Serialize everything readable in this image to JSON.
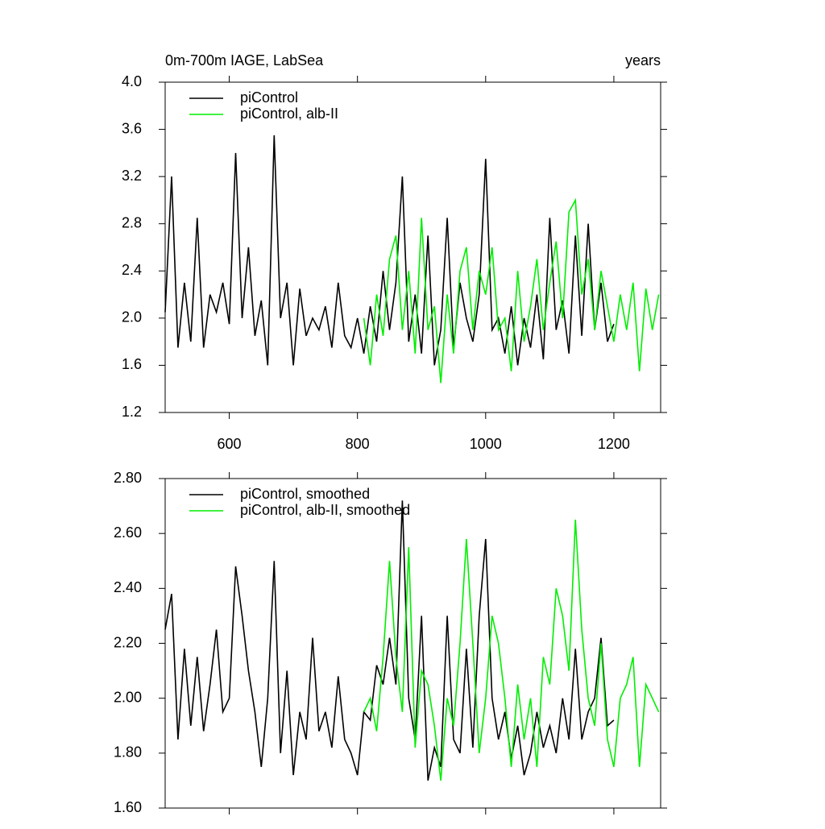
{
  "chart_data": [
    {
      "type": "line",
      "title": "0m-700m IAGE, LabSea",
      "right_title": "years",
      "x": [
        500,
        510,
        520,
        530,
        540,
        550,
        560,
        570,
        580,
        590,
        600,
        610,
        620,
        630,
        640,
        650,
        660,
        670,
        680,
        690,
        700,
        710,
        720,
        730,
        740,
        750,
        760,
        770,
        780,
        790,
        800,
        810,
        820,
        830,
        840,
        850,
        860,
        870,
        880,
        890,
        900,
        910,
        920,
        930,
        940,
        950,
        960,
        970,
        980,
        990,
        1000,
        1010,
        1020,
        1030,
        1040,
        1050,
        1060,
        1070,
        1080,
        1090,
        1100,
        1110,
        1120,
        1130,
        1140,
        1150,
        1160,
        1170,
        1180,
        1190,
        1200,
        1210,
        1220,
        1230,
        1240,
        1250,
        1260,
        1270
      ],
      "series": [
        {
          "name": "piControl",
          "color": "#000000",
          "values": [
            2.05,
            3.2,
            1.75,
            2.3,
            1.8,
            2.85,
            1.75,
            2.2,
            2.05,
            2.3,
            1.95,
            3.4,
            2.0,
            2.6,
            1.85,
            2.15,
            1.6,
            3.55,
            2.0,
            2.3,
            1.6,
            2.25,
            1.85,
            2.0,
            1.9,
            2.1,
            1.75,
            2.3,
            1.85,
            1.75,
            2.0,
            1.7,
            2.1,
            1.8,
            2.4,
            1.9,
            2.3,
            3.2,
            1.8,
            2.2,
            1.7,
            2.7,
            1.6,
            1.9,
            2.85,
            1.75,
            2.3,
            2.0,
            1.8,
            2.2,
            3.35,
            1.9,
            2.0,
            1.7,
            2.1,
            1.6,
            2.0,
            1.75,
            2.2,
            1.65,
            2.85,
            1.9,
            2.15,
            1.7,
            2.7,
            1.85,
            2.8,
            1.9,
            2.3,
            1.8,
            1.95,
            null,
            null,
            null,
            null,
            null,
            null,
            null
          ]
        },
        {
          "name": "piControl, alb-II",
          "color": "#00ee00",
          "values": [
            null,
            null,
            null,
            null,
            null,
            null,
            null,
            null,
            null,
            null,
            null,
            null,
            null,
            null,
            null,
            null,
            null,
            null,
            null,
            null,
            null,
            null,
            null,
            null,
            null,
            null,
            null,
            null,
            null,
            null,
            null,
            2.0,
            1.6,
            2.2,
            1.85,
            2.5,
            2.7,
            1.9,
            2.4,
            1.7,
            2.85,
            1.9,
            2.1,
            1.45,
            2.2,
            1.7,
            2.4,
            2.6,
            1.9,
            2.4,
            2.2,
            2.6,
            1.9,
            2.0,
            1.55,
            2.4,
            1.8,
            2.1,
            2.5,
            1.9,
            2.3,
            2.65,
            2.0,
            2.9,
            3.0,
            2.2,
            2.5,
            1.9,
            2.4,
            2.1,
            1.8,
            2.2,
            1.9,
            2.3,
            1.55,
            2.25,
            1.9,
            2.2
          ]
        }
      ],
      "xlim": [
        500,
        1273
      ],
      "xticks": [
        600,
        800,
        1000,
        1200
      ],
      "ylim": [
        1.2,
        4.0
      ],
      "yticks": [
        1.2,
        1.6,
        {
          "value": 2,
          "label": "2.0"
        },
        2.4,
        2.8,
        3.2,
        3.6,
        {
          "value": 4,
          "label": "4.0"
        }
      ]
    },
    {
      "type": "line",
      "x": [
        500,
        510,
        520,
        530,
        540,
        550,
        560,
        570,
        580,
        590,
        600,
        610,
        620,
        630,
        640,
        650,
        660,
        670,
        680,
        690,
        700,
        710,
        720,
        730,
        740,
        750,
        760,
        770,
        780,
        790,
        800,
        810,
        820,
        830,
        840,
        850,
        860,
        870,
        880,
        890,
        900,
        910,
        920,
        930,
        940,
        950,
        960,
        970,
        980,
        990,
        1000,
        1010,
        1020,
        1030,
        1040,
        1050,
        1060,
        1070,
        1080,
        1090,
        1100,
        1110,
        1120,
        1130,
        1140,
        1150,
        1160,
        1170,
        1180,
        1190,
        1200,
        1210,
        1220,
        1230,
        1240,
        1250,
        1260,
        1270
      ],
      "series": [
        {
          "name": "piControl, smoothed",
          "color": "#000000",
          "values": [
            2.25,
            2.38,
            1.85,
            2.18,
            1.9,
            2.15,
            1.88,
            2.05,
            2.25,
            1.95,
            2.0,
            2.48,
            2.3,
            2.1,
            1.95,
            1.75,
            2.0,
            2.5,
            1.8,
            2.1,
            1.72,
            1.95,
            1.85,
            2.22,
            1.88,
            1.95,
            1.82,
            2.08,
            1.85,
            1.8,
            1.72,
            1.95,
            1.92,
            2.12,
            2.05,
            2.22,
            2.05,
            2.72,
            2.0,
            1.85,
            2.3,
            1.7,
            1.82,
            1.75,
            2.3,
            1.85,
            1.8,
            2.18,
            1.82,
            2.3,
            2.58,
            2.0,
            1.85,
            1.95,
            1.78,
            1.9,
            1.72,
            1.8,
            1.95,
            1.82,
            1.9,
            1.8,
            2.0,
            1.85,
            2.18,
            1.85,
            1.95,
            2.0,
            2.22,
            1.9,
            1.92,
            null,
            null,
            null,
            null,
            null,
            null,
            null
          ]
        },
        {
          "name": "piControl, alb-II, smoothed",
          "color": "#00ee00",
          "values": [
            null,
            null,
            null,
            null,
            null,
            null,
            null,
            null,
            null,
            null,
            null,
            null,
            null,
            null,
            null,
            null,
            null,
            null,
            null,
            null,
            null,
            null,
            null,
            null,
            null,
            null,
            null,
            null,
            null,
            null,
            null,
            1.95,
            2.0,
            1.88,
            2.15,
            2.5,
            2.15,
            1.95,
            2.55,
            1.82,
            2.1,
            2.05,
            1.9,
            1.7,
            2.0,
            1.9,
            2.2,
            2.58,
            2.2,
            1.8,
            2.0,
            2.3,
            2.2,
            2.0,
            1.75,
            2.05,
            1.85,
            2.0,
            1.75,
            2.15,
            2.05,
            2.4,
            2.3,
            2.1,
            2.65,
            2.25,
            2.0,
            1.9,
            2.2,
            1.85,
            1.75,
            2.0,
            2.05,
            2.15,
            1.75,
            2.05,
            2.0,
            1.95
          ]
        }
      ],
      "xlim": [
        500,
        1273
      ],
      "ylim": [
        1.6,
        2.8
      ],
      "yticks": [
        {
          "value": 1.6,
          "label": "1.60"
        },
        {
          "value": 1.8,
          "label": "1.80"
        },
        {
          "value": 2,
          "label": "2.00"
        },
        {
          "value": 2.2,
          "label": "2.20"
        },
        {
          "value": 2.4,
          "label": "2.40"
        },
        {
          "value": 2.6,
          "label": "2.60"
        },
        {
          "value": 2.8,
          "label": "2.80"
        }
      ]
    }
  ]
}
